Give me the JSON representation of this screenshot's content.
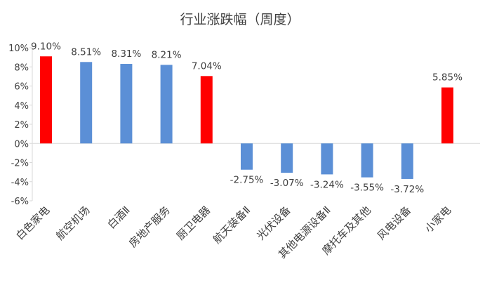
{
  "chart_data": {
    "type": "bar",
    "title": "行业涨跌幅（周度）",
    "xlabel": "",
    "ylabel": "",
    "ylim": [
      -6,
      10
    ],
    "yticks": [
      10,
      8,
      6,
      4,
      2,
      0,
      -2,
      -4,
      -6
    ],
    "ytick_labels": [
      "10%",
      "8%",
      "6%",
      "4%",
      "2%",
      "0%",
      "-2%",
      "-4%",
      "-6%"
    ],
    "grid": false,
    "legend": "none",
    "categories": [
      "白色家电",
      "航空机场",
      "白酒Ⅱ",
      "房地产服务",
      "厨卫电器",
      "航天装备Ⅱ",
      "光伏设备",
      "其他电源设备Ⅱ",
      "摩托车及其他",
      "风电设备",
      "小家电"
    ],
    "values": [
      9.1,
      8.51,
      8.31,
      8.21,
      7.04,
      -2.75,
      -3.07,
      -3.24,
      -3.55,
      -3.72,
      5.85
    ],
    "data_labels": [
      "9.10%",
      "8.51%",
      "8.31%",
      "8.21%",
      "7.04%",
      "-2.75%",
      "-3.07%",
      "-3.24%",
      "-3.55%",
      "-3.72%",
      "5.85%"
    ],
    "highlighted": [
      true,
      false,
      false,
      false,
      true,
      false,
      false,
      false,
      false,
      false,
      true
    ],
    "colors": {
      "default": "#5B8FD6",
      "highlight": "#FF0000",
      "axis": "#D9D9D9",
      "text": "#404040"
    }
  }
}
